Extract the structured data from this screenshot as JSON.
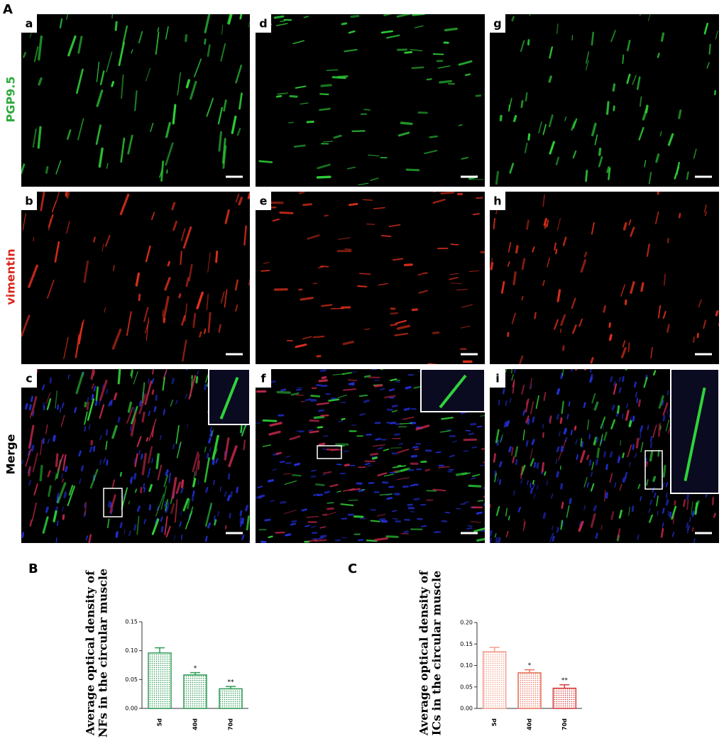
{
  "panels": {
    "figure_label": "A",
    "row_labels": [
      "PGP9.5",
      "vimentin",
      "Merge"
    ],
    "image_labels": [
      "a",
      "b",
      "c",
      "d",
      "e",
      "f",
      "g",
      "h",
      "i"
    ]
  },
  "chart_data": [
    {
      "type": "bar",
      "panel_label": "B",
      "ylabel": [
        "Average optical density of",
        "NFs in the circular muscle"
      ],
      "categories": [
        "5d",
        "40d",
        "70d"
      ],
      "values": [
        0.096,
        0.058,
        0.034
      ],
      "errors": [
        0.009,
        0.004,
        0.004
      ],
      "significance": [
        null,
        "*",
        "**"
      ],
      "colors": [
        "#2e9a55",
        "#2e9a55",
        "#2e9a55"
      ],
      "ylim": [
        0,
        0.15
      ],
      "yticks": [
        {
          "value": 0,
          "label": "0.00"
        },
        {
          "value": 0.05,
          "label": "0.05"
        },
        {
          "value": 0.1,
          "label": "0.10"
        },
        {
          "value": 0.15,
          "label": "0.15"
        }
      ]
    },
    {
      "type": "bar",
      "panel_label": "C",
      "ylabel": [
        "Average optical density of",
        "ICs in the circular muscle"
      ],
      "categories": [
        "5d",
        "40d",
        "70d"
      ],
      "values": [
        0.132,
        0.083,
        0.047
      ],
      "errors": [
        0.01,
        0.007,
        0.008
      ],
      "significance": [
        null,
        "*",
        "**"
      ],
      "colors": [
        "#f2a08c",
        "#e8735c",
        "#d63a3a"
      ],
      "ylim": [
        0,
        0.2
      ],
      "yticks": [
        {
          "value": 0,
          "label": "0.00"
        },
        {
          "value": 0.05,
          "label": "0.05"
        },
        {
          "value": 0.1,
          "label": "0.10"
        },
        {
          "value": 0.15,
          "label": "0.15"
        },
        {
          "value": 0.2,
          "label": "0.20"
        }
      ]
    }
  ]
}
